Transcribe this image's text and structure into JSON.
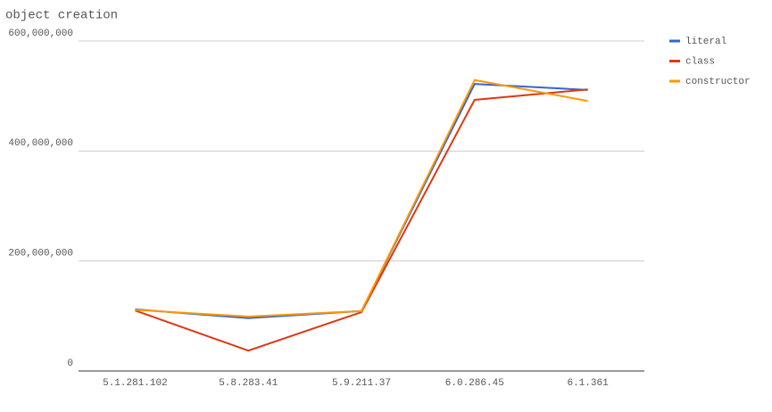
{
  "chart_data": {
    "type": "line",
    "title": "object creation",
    "categories": [
      "5.1.281.102",
      "5.8.283.41",
      "5.9.211.37",
      "6.0.286.45",
      "6.1.361"
    ],
    "series": [
      {
        "name": "literal",
        "color": "#3366cc",
        "values": [
          112000000,
          96000000,
          109000000,
          522000000,
          511000000
        ]
      },
      {
        "name": "class",
        "color": "#dc3912",
        "values": [
          110000000,
          37000000,
          107000000,
          493000000,
          512000000
        ]
      },
      {
        "name": "constructor",
        "color": "#ff9900",
        "values": [
          111000000,
          99000000,
          109000000,
          529000000,
          491000000
        ]
      }
    ],
    "ylim": [
      0,
      600000000
    ],
    "yticks": [
      0,
      {
        "value": 200000000,
        "label": "200,000,000"
      },
      {
        "value": 400000000,
        "label": "400,000,000"
      },
      {
        "value": 600000000,
        "label": "600,000,000"
      }
    ],
    "grid": true,
    "legend": "right"
  }
}
